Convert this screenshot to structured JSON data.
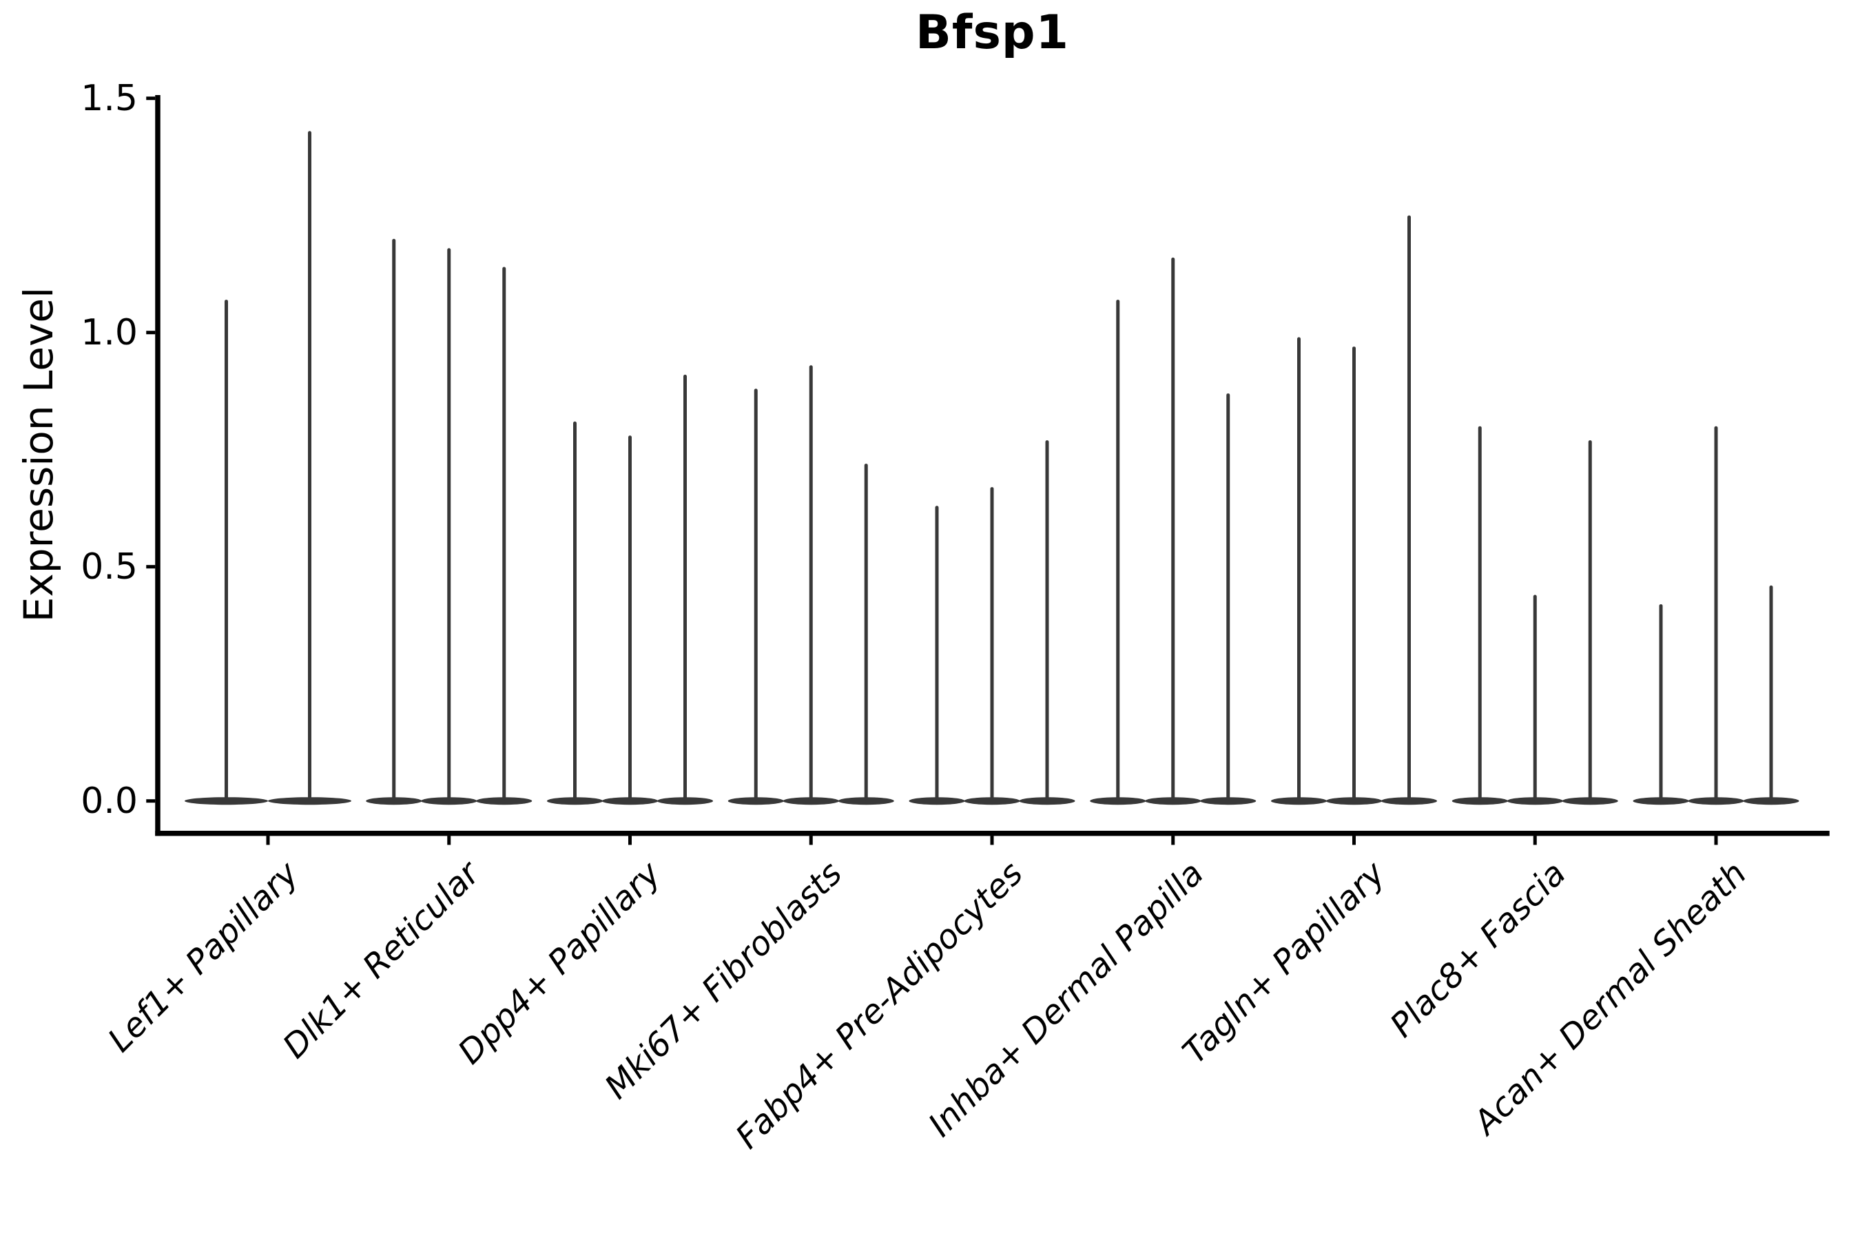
{
  "figure": {
    "title": "Bfsp1"
  },
  "y_axis": {
    "label": "Expression Level",
    "tick_labels": [
      "0.0",
      "0.5",
      "1.0",
      "1.5"
    ],
    "tick_values": [
      0,
      0.5,
      1.0,
      1.5
    ],
    "range": [
      0,
      1.5
    ]
  },
  "x_axis": {
    "tick_labels": [
      "Lef1+ Papillary",
      "Dlk1+ Reticular",
      "Dpp4+ Papillary",
      "Mki67+ Fibroblasts",
      "Fabp4+ Pre-Adipocytes",
      "Inhba+ Dermal Papilla",
      "Tagln+ Papillary",
      "Plac8+ Fascia",
      "Acan+ Dermal Sheath"
    ]
  },
  "chart_data": {
    "type": "violin",
    "title": "Bfsp1",
    "xlabel": "",
    "ylabel": "Expression Level",
    "ylim": [
      0,
      1.5
    ],
    "yticks": [
      0,
      0.5,
      1.0,
      1.5
    ],
    "grid": false,
    "legend": false,
    "note": "Expression is concentrated at 0: each violin renders as a wide flat lens at y=0 with a thin vertical spike up to the group maximum. Categories contain 2-3 violins whose bases merge.",
    "categories": [
      {
        "label": "Lef1+ Papillary",
        "violin_max": [
          1.07,
          1.43
        ]
      },
      {
        "label": "Dlk1+ Reticular",
        "violin_max": [
          1.2,
          1.18,
          1.14
        ]
      },
      {
        "label": "Dpp4+ Papillary",
        "violin_max": [
          0.81,
          0.78,
          0.91
        ]
      },
      {
        "label": "Mki67+ Fibroblasts",
        "violin_max": [
          0.88,
          0.93,
          0.72
        ]
      },
      {
        "label": "Fabp4+ Pre-Adipocytes",
        "violin_max": [
          0.63,
          0.67,
          0.77
        ]
      },
      {
        "label": "Inhba+ Dermal Papilla",
        "violin_max": [
          1.07,
          1.16,
          0.87
        ]
      },
      {
        "label": "Tagln+ Papillary",
        "violin_max": [
          0.99,
          0.97,
          1.25
        ]
      },
      {
        "label": "Plac8+ Fascia",
        "violin_max": [
          0.8,
          0.44,
          0.77
        ]
      },
      {
        "label": "Acan+ Dermal Sheath",
        "violin_max": [
          0.42,
          0.8,
          0.46
        ]
      }
    ],
    "colors": {
      "violin": "#383838",
      "axis": "#000000",
      "text": "#000000"
    }
  }
}
